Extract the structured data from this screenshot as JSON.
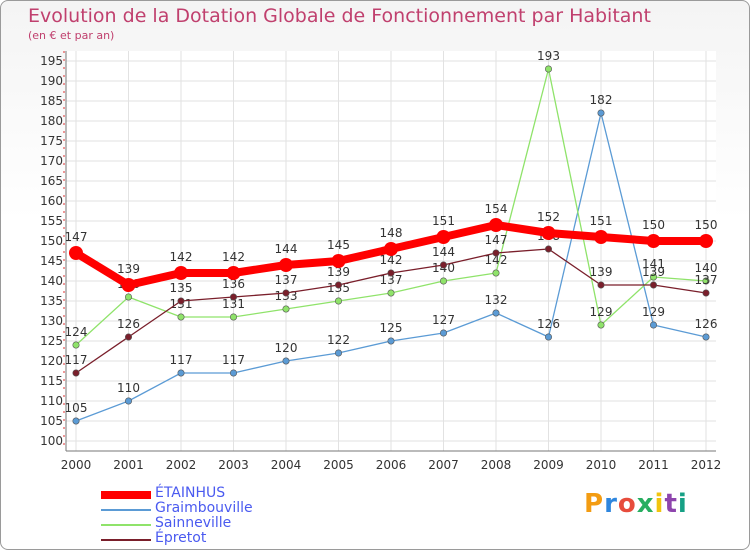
{
  "chart_data": {
    "type": "line",
    "title": "Evolution de la Dotation Globale de Fonctionnement par Habitant",
    "subtitle": "(en € et par an)",
    "x": [
      "2000",
      "2001",
      "2002",
      "2003",
      "2004",
      "2005",
      "2006",
      "2007",
      "2008",
      "2009",
      "2010",
      "2011",
      "2012"
    ],
    "ylim": [
      100,
      195
    ],
    "yticks": [
      100,
      105,
      110,
      115,
      120,
      125,
      130,
      135,
      140,
      145,
      150,
      155,
      160,
      165,
      170,
      175,
      180,
      185,
      190,
      195
    ],
    "grid": true,
    "series": [
      {
        "name": "Graimbouville",
        "color": "#5b9bd5",
        "values": [
          105,
          110,
          117,
          117,
          120,
          122,
          125,
          127,
          132,
          126,
          182,
          129,
          126
        ]
      },
      {
        "name": "Sainneville",
        "color": "#8fe36a",
        "values": [
          124,
          136,
          131,
          131,
          133,
          135,
          137,
          140,
          142,
          193,
          129,
          141,
          140
        ]
      },
      {
        "name": "Épretot",
        "color": "#7a1f2b",
        "values": [
          117,
          126,
          135,
          136,
          137,
          139,
          142,
          144,
          147,
          148,
          139,
          139,
          137
        ]
      },
      {
        "name": "ÉTAINHUS",
        "color": "#ff0000",
        "values": [
          147,
          139,
          142,
          142,
          144,
          145,
          148,
          151,
          154,
          152,
          151,
          150,
          150
        ]
      }
    ],
    "legend_order": [
      "ÉTAINHUS",
      "Graimbouville",
      "Sainneville",
      "Épretot"
    ]
  },
  "logo": {
    "text": "Proxiti",
    "colors": [
      "#f39c12",
      "#2e86de",
      "#e74c3c",
      "#27ae60",
      "#f1c40f",
      "#8e44ad",
      "#16a085"
    ]
  }
}
